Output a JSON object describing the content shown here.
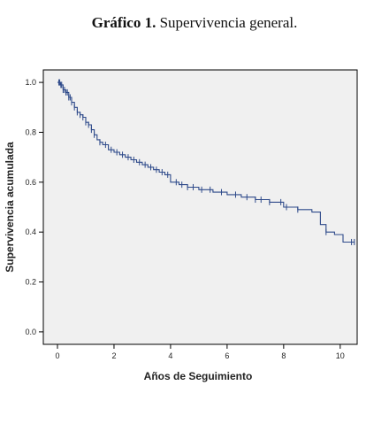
{
  "caption": {
    "number": "Gráfico 1.",
    "text": "Supervivencia general."
  },
  "chart_data": {
    "type": "line",
    "style": "step (Kaplan-Meier survival curve with censor marks)",
    "title": "",
    "xlabel": "Años de Seguimiento",
    "ylabel": "Supervivencia acumulada",
    "xlim": [
      -0.5,
      10.6
    ],
    "ylim": [
      -0.05,
      1.05
    ],
    "x_ticks": [
      "0",
      "2",
      "4",
      "6",
      "8",
      "10"
    ],
    "y_ticks": [
      "0.0",
      "0.2",
      "0.4",
      "0.6",
      "0.8",
      "1.0"
    ],
    "grid": false,
    "legend": "none",
    "colors": {
      "plot_background": "#f0f0f0",
      "series": "#2e4a8a"
    },
    "series": [
      {
        "x": [
          0,
          0.1,
          0.2,
          0.3,
          0.4,
          0.5,
          0.6,
          0.7,
          0.8,
          0.9,
          1.0,
          1.1,
          1.2,
          1.3,
          1.4,
          1.5,
          1.6,
          1.8,
          2.0,
          2.2,
          2.4,
          2.6,
          2.8,
          3.0,
          3.2,
          3.4,
          3.6,
          3.8,
          4.0,
          4.3,
          4.6,
          5.0,
          5.5,
          6.0,
          6.5,
          7.0,
          7.5,
          8.0,
          8.5,
          9.0,
          9.3,
          9.5,
          9.8,
          10.1,
          10.5
        ],
        "y": [
          1.0,
          0.99,
          0.97,
          0.96,
          0.94,
          0.92,
          0.9,
          0.88,
          0.87,
          0.86,
          0.84,
          0.83,
          0.81,
          0.79,
          0.77,
          0.76,
          0.75,
          0.73,
          0.72,
          0.71,
          0.7,
          0.69,
          0.68,
          0.67,
          0.66,
          0.65,
          0.64,
          0.63,
          0.6,
          0.59,
          0.58,
          0.57,
          0.56,
          0.55,
          0.54,
          0.53,
          0.52,
          0.5,
          0.49,
          0.48,
          0.43,
          0.4,
          0.39,
          0.36,
          0.36
        ]
      }
    ],
    "censor_x": [
      0.05,
      0.08,
      0.12,
      0.15,
      0.2,
      0.25,
      0.3,
      0.35,
      0.4,
      0.45,
      0.5,
      0.6,
      0.7,
      0.8,
      0.9,
      1.0,
      1.1,
      1.2,
      1.3,
      1.5,
      1.7,
      1.9,
      2.1,
      2.3,
      2.5,
      2.7,
      2.9,
      3.1,
      3.3,
      3.5,
      3.7,
      3.9,
      4.2,
      4.4,
      4.6,
      4.8,
      5.1,
      5.4,
      5.8,
      6.3,
      6.7,
      7.0,
      7.2,
      7.5,
      7.9,
      8.1,
      8.5,
      9.5,
      10.4,
      10.5
    ]
  }
}
